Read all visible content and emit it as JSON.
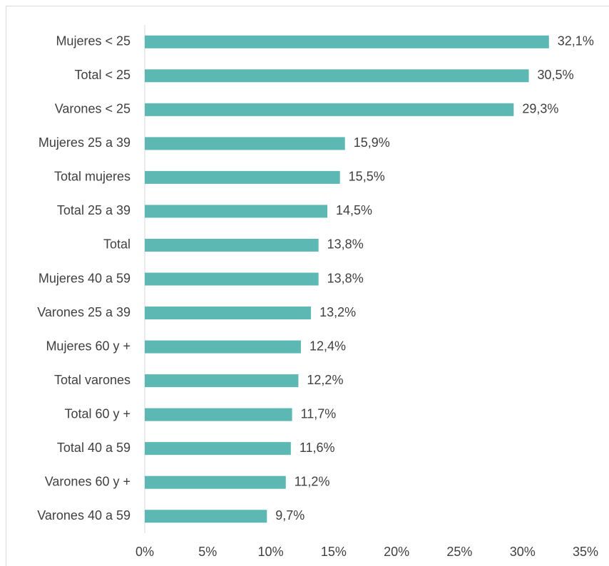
{
  "chart_data": {
    "type": "bar",
    "orientation": "horizontal",
    "categories": [
      "Mujeres < 25",
      "Total < 25",
      "Varones < 25",
      "Mujeres 25 a 39",
      "Total mujeres",
      "Total 25 a 39",
      "Total",
      "Mujeres 40 a 59",
      "Varones 25 a 39",
      "Mujeres 60 y +",
      "Total varones",
      "Total 60 y +",
      "Total 40 a 59",
      "Varones 60 y +",
      "Varones 40 a 59"
    ],
    "values": [
      32.1,
      30.5,
      29.3,
      15.9,
      15.5,
      14.5,
      13.8,
      13.8,
      13.2,
      12.4,
      12.2,
      11.7,
      11.6,
      11.2,
      9.7
    ],
    "value_labels": [
      "32,1%",
      "30,5%",
      "29,3%",
      "15,9%",
      "15,5%",
      "14,5%",
      "13,8%",
      "13,8%",
      "13,2%",
      "12,4%",
      "12,2%",
      "11,7%",
      "11,6%",
      "11,2%",
      "9,7%"
    ],
    "color": "#5cb8b2",
    "xlim": [
      0,
      35
    ],
    "xticks": [
      {
        "value": 0,
        "label": "0%"
      },
      {
        "value": 5,
        "label": "5%"
      },
      {
        "value": 10,
        "label": "10%"
      },
      {
        "value": 15,
        "label": "15%"
      },
      {
        "value": 20,
        "label": "20%"
      },
      {
        "value": 25,
        "label": "25%"
      },
      {
        "value": 30,
        "label": "30%"
      },
      {
        "value": 35,
        "label": "35%"
      }
    ],
    "grid": false
  }
}
